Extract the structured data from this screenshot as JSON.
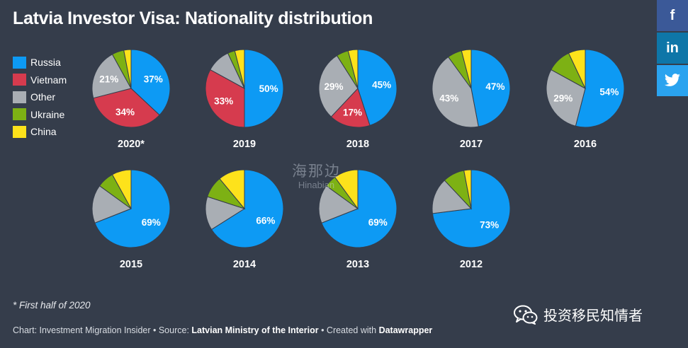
{
  "title": "Latvia Investor Visa: Nationality distribution",
  "legend": [
    {
      "name": "Russia",
      "color": "#0d9af4"
    },
    {
      "name": "Vietnam",
      "color": "#d63b4e"
    },
    {
      "name": "Other",
      "color": "#a9aeb4"
    },
    {
      "name": "Ukraine",
      "color": "#7db114"
    },
    {
      "name": "China",
      "color": "#fde21b"
    }
  ],
  "share": {
    "facebook": "f",
    "linkedin": "in",
    "twitter": "twitter"
  },
  "chart_data": {
    "type": "pie",
    "series_order": [
      "Russia",
      "Vietnam",
      "Other",
      "Ukraine",
      "China"
    ],
    "colors": {
      "Russia": "#0d9af4",
      "Vietnam": "#d63b4e",
      "Other": "#a9aeb4",
      "Ukraine": "#7db114",
      "China": "#fde21b"
    },
    "charts": [
      {
        "year": "2020*",
        "values": {
          "Russia": 37,
          "Vietnam": 34,
          "Other": 21,
          "Ukraine": 5,
          "China": 3
        },
        "labels": [
          "Russia",
          "Vietnam",
          "Other"
        ]
      },
      {
        "year": "2019",
        "values": {
          "Russia": 50,
          "Vietnam": 33,
          "Other": 10,
          "Ukraine": 3,
          "China": 4
        },
        "labels": [
          "Russia",
          "Vietnam"
        ]
      },
      {
        "year": "2018",
        "values": {
          "Russia": 45,
          "Vietnam": 17,
          "Other": 29,
          "Ukraine": 5,
          "China": 4
        },
        "labels": [
          "Russia",
          "Vietnam",
          "Other"
        ]
      },
      {
        "year": "2017",
        "values": {
          "Russia": 47,
          "Vietnam": 0,
          "Other": 43,
          "Ukraine": 6,
          "China": 4
        },
        "labels": [
          "Russia",
          "Other"
        ]
      },
      {
        "year": "2016",
        "values": {
          "Russia": 54,
          "Vietnam": 0,
          "Other": 29,
          "Ukraine": 10,
          "China": 7
        },
        "labels": [
          "Russia",
          "Other"
        ]
      },
      {
        "year": "2015",
        "values": {
          "Russia": 69,
          "Vietnam": 0,
          "Other": 16,
          "Ukraine": 7,
          "China": 8
        },
        "labels": [
          "Russia"
        ]
      },
      {
        "year": "2014",
        "values": {
          "Russia": 66,
          "Vietnam": 0,
          "Other": 14,
          "Ukraine": 9,
          "China": 11
        },
        "labels": [
          "Russia"
        ]
      },
      {
        "year": "2013",
        "values": {
          "Russia": 69,
          "Vietnam": 0,
          "Other": 16,
          "Ukraine": 5,
          "China": 10
        },
        "labels": [
          "Russia"
        ]
      },
      {
        "year": "2012",
        "values": {
          "Russia": 73,
          "Vietnam": 0,
          "Other": 15,
          "Ukraine": 9,
          "China": 3
        },
        "labels": [
          "Russia"
        ]
      }
    ]
  },
  "footnote": "* First half of 2020",
  "credit": {
    "chart_label": "Chart: Investment Migration Insider • Source: ",
    "source": "Latvian Ministry of the Interior",
    "created_label": " • Created with ",
    "tool": "Datawrapper"
  },
  "watermark": {
    "cn": "海那边",
    "en": "Hinabian"
  },
  "wechat": "投资移民知情者"
}
